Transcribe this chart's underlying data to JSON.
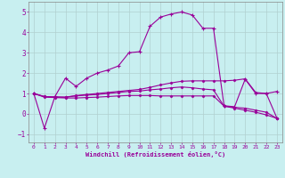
{
  "xlabel": "Windchill (Refroidissement éolien,°C)",
  "bg_color": "#c8eff0",
  "line_color": "#990099",
  "grid_color": "#b0d0d0",
  "x_hours": [
    0,
    1,
    2,
    3,
    4,
    5,
    6,
    7,
    8,
    9,
    10,
    11,
    12,
    13,
    14,
    15,
    16,
    17,
    18,
    19,
    20,
    21,
    22,
    23
  ],
  "y_main": [
    1.0,
    -0.7,
    0.85,
    1.75,
    1.35,
    1.75,
    2.0,
    2.15,
    2.35,
    3.0,
    3.05,
    4.3,
    4.75,
    4.9,
    5.0,
    4.85,
    4.2,
    4.2,
    0.4,
    0.35,
    1.7,
    1.0,
    1.0,
    1.1
  ],
  "y_line2": [
    1.0,
    0.85,
    0.83,
    0.82,
    0.9,
    0.95,
    1.0,
    1.05,
    1.1,
    1.15,
    1.2,
    1.3,
    1.42,
    1.52,
    1.6,
    1.62,
    1.62,
    1.62,
    1.62,
    1.65,
    1.72,
    1.05,
    1.0,
    -0.2
  ],
  "y_line3": [
    1.0,
    0.85,
    0.83,
    0.82,
    0.88,
    0.92,
    0.95,
    1.0,
    1.05,
    1.1,
    1.12,
    1.18,
    1.22,
    1.28,
    1.32,
    1.28,
    1.22,
    1.18,
    0.38,
    0.32,
    0.28,
    0.18,
    0.08,
    -0.22
  ],
  "y_line4": [
    1.0,
    0.82,
    0.8,
    0.78,
    0.78,
    0.8,
    0.82,
    0.85,
    0.88,
    0.9,
    0.9,
    0.9,
    0.88,
    0.88,
    0.88,
    0.88,
    0.88,
    0.88,
    0.38,
    0.28,
    0.18,
    0.08,
    -0.05,
    -0.22
  ],
  "ylim": [
    -1.4,
    5.5
  ],
  "yticks": [
    -1,
    0,
    1,
    2,
    3,
    4,
    5
  ],
  "xticks": [
    0,
    1,
    2,
    3,
    4,
    5,
    6,
    7,
    8,
    9,
    10,
    11,
    12,
    13,
    14,
    15,
    16,
    17,
    18,
    19,
    20,
    21,
    22,
    23
  ]
}
